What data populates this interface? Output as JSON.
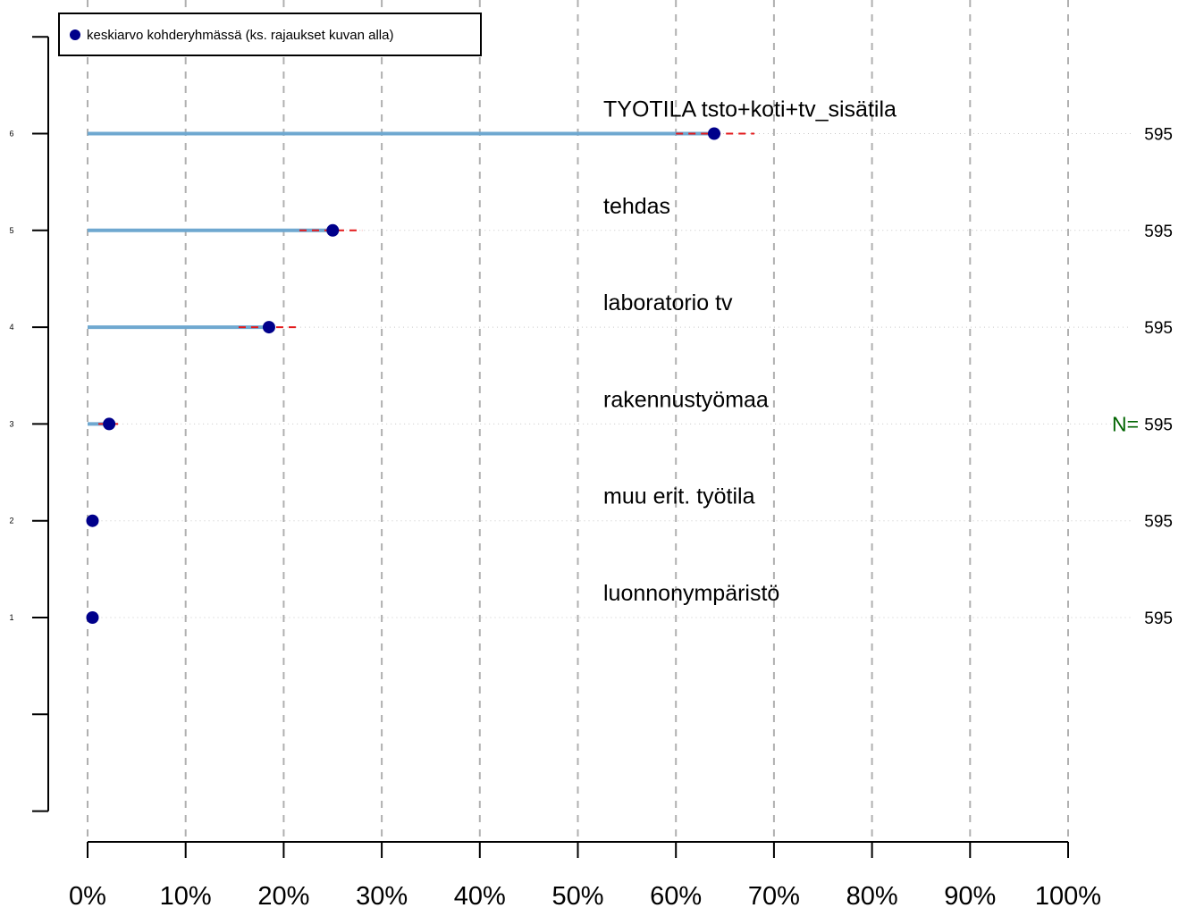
{
  "chart_data": {
    "type": "scatter",
    "legend": {
      "label": "keskiarvo kohderyhmässä (ks. rajaukset kuvan alla)",
      "placement": "top-left"
    },
    "x_axis": {
      "ticks": [
        0,
        10,
        20,
        30,
        40,
        50,
        60,
        70,
        80,
        90,
        100
      ],
      "tick_labels": [
        "0%",
        "10%",
        "20%",
        "30%",
        "40%",
        "50%",
        "60%",
        "70%",
        "80%",
        "90%",
        "100%"
      ],
      "xlim": [
        0,
        100
      ],
      "grid": true
    },
    "y_axis": {
      "ticks": [
        1,
        2,
        3,
        4,
        5,
        6
      ],
      "tick_labels": [
        "1",
        "2",
        "3",
        "4",
        "5",
        "6"
      ]
    },
    "categories": [
      {
        "y": 6,
        "label": "TYOTILA tsto+koti+tv_sisätila",
        "mean": 63.9,
        "ci": [
          60.0,
          68.0
        ],
        "n": "595"
      },
      {
        "y": 5,
        "label": "tehdas",
        "mean": 25.0,
        "ci": [
          21.6,
          28.0
        ],
        "n": "595"
      },
      {
        "y": 4,
        "label": "laboratorio tv",
        "mean": 18.5,
        "ci": [
          15.4,
          21.7
        ],
        "n": "595"
      },
      {
        "y": 3,
        "label": "rakennustyömaa",
        "mean": 2.2,
        "ci": [
          1.1,
          3.3
        ],
        "n": "595"
      },
      {
        "y": 2,
        "label": "muu erit. työtila",
        "mean": 0.5,
        "ci": [
          0.0,
          1.0
        ],
        "n": "595"
      },
      {
        "y": 1,
        "label": "luonnonympäristö",
        "mean": 0.5,
        "ci": [
          0.0,
          1.0
        ],
        "n": "595"
      }
    ],
    "n_prefix": "N=",
    "colors": {
      "bar": "#6fa8d0",
      "point": "#00008b",
      "ci": "#e31a1c",
      "grid": "#b0b0b0",
      "n_prefix": "#006400"
    }
  }
}
